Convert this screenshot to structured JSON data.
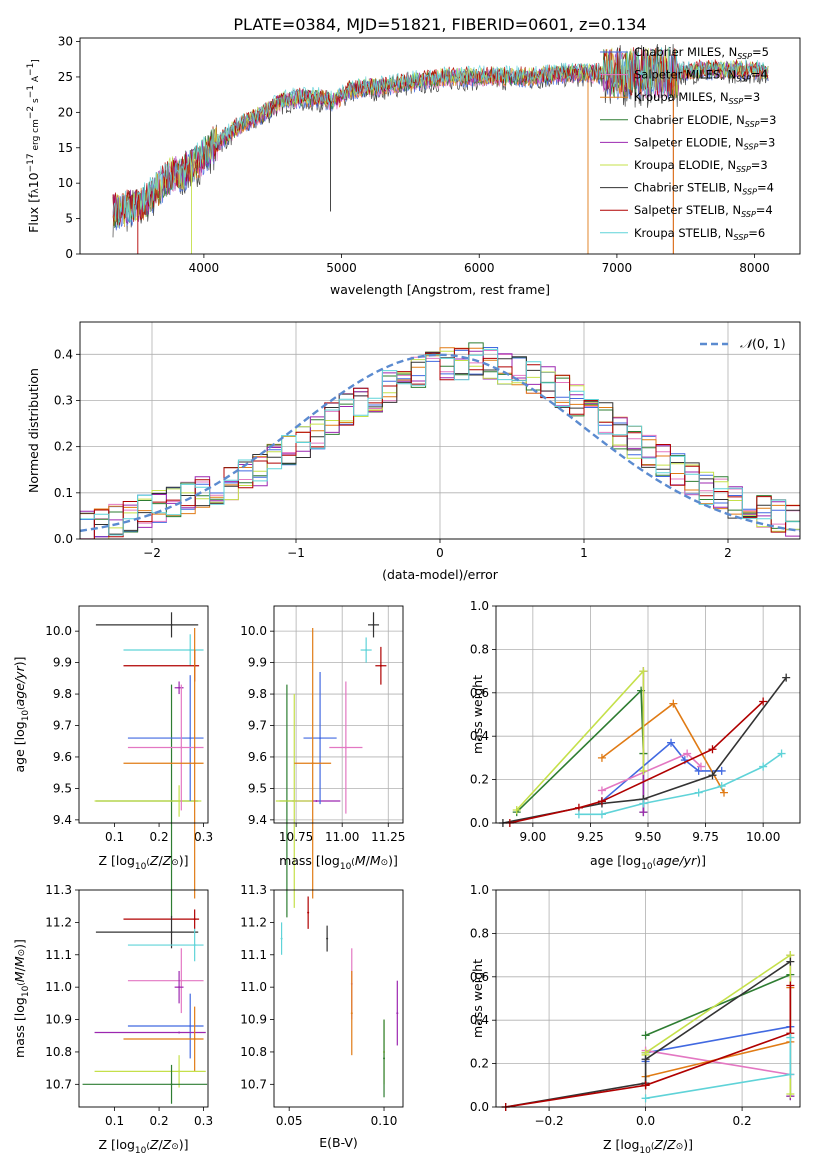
{
  "title": "PLATE=0384, MJD=51821, FIBERID=0601, z=0.134",
  "colors": {
    "chabrier_miles": "#4169e1",
    "salpeter_miles": "#e377c2",
    "kroupa_miles": "#e07b15",
    "chabrier_elodie": "#2e7d32",
    "salpeter_elodie": "#9c27b0",
    "kroupa_elodie": "#c5e04a",
    "chabrier_stelib": "#333333",
    "salpeter_stelib": "#b00000",
    "kroupa_stelib": "#5fd3d8",
    "gaussian": "#5b8bd0"
  },
  "chart_data": [
    {
      "id": "spectrum",
      "type": "line",
      "xlabel": "wavelength [Angstrom, rest frame]",
      "ylabel": "Flux [f_λ 10^-17 erg cm^-2 s^-1 A^-1]",
      "xlim": [
        3100,
        8330
      ],
      "ylim": [
        0,
        30.5
      ],
      "xticks": [
        4000,
        5000,
        6000,
        7000,
        8000
      ],
      "yticks": [
        0,
        5,
        10,
        15,
        20,
        25,
        30
      ],
      "grid": false,
      "legend_position": "right",
      "continuum": {
        "x": [
          3340,
          3450,
          3550,
          3650,
          3750,
          3850,
          3950,
          4050,
          4150,
          4250,
          4350,
          4450,
          4550,
          4650,
          4750,
          4850,
          4950,
          5050,
          5150,
          5250,
          5400,
          5600,
          5800,
          6000,
          6200,
          6400,
          6600,
          6800,
          7000,
          7200,
          7400,
          7600,
          7800,
          8000,
          8100
        ],
        "y": [
          6.0,
          6.5,
          7.0,
          9.0,
          11.0,
          11.5,
          13.0,
          15.0,
          16.5,
          18.0,
          19.0,
          20.0,
          21.5,
          22.0,
          22.0,
          22.0,
          21.5,
          23.0,
          23.5,
          23.5,
          24.0,
          24.5,
          25.0,
          25.0,
          25.0,
          25.0,
          25.5,
          25.5,
          25.5,
          25.5,
          25.5,
          26.0,
          26.0,
          26.0,
          25.5
        ]
      },
      "series": [
        {
          "name": "Chabrier MILES, N_SSP=5",
          "color_key": "chabrier_miles"
        },
        {
          "name": "Salpeter MILES, N_SSP=4",
          "color_key": "salpeter_miles"
        },
        {
          "name": "Kroupa MILES, N_SSP=3",
          "color_key": "kroupa_miles"
        },
        {
          "name": "Chabrier ELODIE, N_SSP=3",
          "color_key": "chabrier_elodie"
        },
        {
          "name": "Salpeter ELODIE, N_SSP=3",
          "color_key": "salpeter_elodie"
        },
        {
          "name": "Kroupa ELODIE, N_SSP=3",
          "color_key": "kroupa_elodie"
        },
        {
          "name": "Chabrier STELIB, N_SSP=4",
          "color_key": "chabrier_stelib"
        },
        {
          "name": "Salpeter STELIB, N_SSP=4",
          "color_key": "salpeter_stelib"
        },
        {
          "name": "Kroupa STELIB, N_SSP=6",
          "color_key": "kroupa_stelib"
        }
      ]
    },
    {
      "id": "residuals",
      "type": "histogram",
      "xlabel": "(data-model)/error",
      "ylabel": "Normed distribution",
      "xlim": [
        -2.5,
        2.5
      ],
      "ylim": [
        0,
        0.47
      ],
      "xticks": [
        -2,
        -1,
        0,
        1,
        2
      ],
      "yticks": [
        0.0,
        0.1,
        0.2,
        0.3,
        0.4
      ],
      "grid": true,
      "legend_position": "top-right",
      "legend_label": "N(0,1)",
      "bin_edges_range": [
        -2.6,
        2.6
      ],
      "bin_count": 52,
      "base_values": [
        0.02,
        0.025,
        0.03,
        0.04,
        0.05,
        0.06,
        0.07,
        0.08,
        0.09,
        0.1,
        0.11,
        0.12,
        0.14,
        0.15,
        0.17,
        0.19,
        0.21,
        0.23,
        0.26,
        0.28,
        0.3,
        0.31,
        0.33,
        0.35,
        0.36,
        0.37,
        0.38,
        0.38,
        0.39,
        0.38,
        0.37,
        0.36,
        0.35,
        0.34,
        0.32,
        0.3,
        0.28,
        0.26,
        0.23,
        0.21,
        0.19,
        0.17,
        0.15,
        0.13,
        0.11,
        0.1,
        0.08,
        0.07,
        0.06,
        0.05,
        0.04,
        0.03
      ]
    },
    {
      "id": "age-vs-z",
      "type": "errorbar",
      "xlabel": "Z [log10(Z/Z⊙)]",
      "ylabel": "age  [log10(age/yr)]",
      "xlim": [
        0.02,
        0.31
      ],
      "ylim": [
        9.39,
        10.08
      ],
      "xticks": [
        0.1,
        0.2,
        0.3
      ],
      "yticks": [
        9.4,
        9.5,
        9.6,
        9.7,
        9.8,
        9.9,
        10.0
      ],
      "grid": false,
      "points": [
        {
          "color_key": "chabrier_stelib",
          "x": 0.228,
          "xerr": [
            0.17,
            0.06
          ],
          "y": 10.02,
          "yerr": 0.04
        },
        {
          "color_key": "kroupa_stelib",
          "x": 0.27,
          "xerr": [
            0.15,
            0.03
          ],
          "y": 9.94,
          "yerr": 0.05
        },
        {
          "color_key": "salpeter_stelib",
          "x": 0.28,
          "xerr": [
            0.16,
            0.01
          ],
          "y": 9.89,
          "yerr": 0.05
        },
        {
          "color_key": "chabrier_elodie",
          "x": 0.228,
          "xerr": [
            0.17,
            0.06
          ],
          "y": 9.46,
          "yerr": 0.37
        },
        {
          "color_key": "salpeter_elodie",
          "x": 0.245,
          "xerr": [
            0.01,
            0.01
          ],
          "y": 9.82,
          "yerr": 0.02
        },
        {
          "color_key": "kroupa_elodie",
          "x": 0.245,
          "xerr": [
            0.19,
            0.05
          ],
          "y": 9.46,
          "yerr": 0.05
        },
        {
          "color_key": "chabrier_miles",
          "x": 0.27,
          "xerr": [
            0.14,
            0.03
          ],
          "y": 9.66,
          "yerr": 0.2
        },
        {
          "color_key": "salpeter_miles",
          "x": 0.25,
          "xerr": [
            0.12,
            0.05
          ],
          "y": 9.63,
          "yerr": 0.2
        },
        {
          "color_key": "kroupa_miles",
          "x": 0.28,
          "xerr": [
            0.16,
            0.02
          ],
          "y": 9.58,
          "yerr": 0.43
        }
      ]
    },
    {
      "id": "age-vs-mass",
      "type": "errorbar",
      "xlabel": "mass [log10(M/M⊙)]",
      "xlim": [
        10.63,
        11.33
      ],
      "ylim": [
        9.39,
        10.08
      ],
      "xticks": [
        10.75,
        11.0,
        11.25
      ],
      "yticks": [
        9.4,
        9.5,
        9.6,
        9.7,
        9.8,
        9.9,
        10.0
      ],
      "grid": true,
      "points": [
        {
          "color_key": "chabrier_stelib",
          "x": 11.17,
          "xerr": [
            0.03,
            0.03
          ],
          "y": 10.02,
          "yerr": 0.04
        },
        {
          "color_key": "kroupa_stelib",
          "x": 11.13,
          "xerr": [
            0.03,
            0.03
          ],
          "y": 9.94,
          "yerr": 0.04
        },
        {
          "color_key": "salpeter_stelib",
          "x": 11.21,
          "xerr": [
            0.03,
            0.03
          ],
          "y": 9.89,
          "yerr": 0.06
        },
        {
          "color_key": "chabrier_elodie",
          "x": 10.7,
          "xerr": [
            0.04,
            0.04
          ],
          "y": 9.46,
          "yerr": 0.37
        },
        {
          "color_key": "salpeter_elodie",
          "x": 10.86,
          "xerr": [
            0.13,
            0.13
          ],
          "y": 9.46,
          "yerr": 0.0
        },
        {
          "color_key": "kroupa_elodie",
          "x": 10.74,
          "xerr": [
            0.1,
            0.1
          ],
          "y": 9.46,
          "yerr": 0.34
        },
        {
          "color_key": "chabrier_miles",
          "x": 10.88,
          "xerr": [
            0.09,
            0.09
          ],
          "y": 9.66,
          "yerr": 0.21
        },
        {
          "color_key": "salpeter_miles",
          "x": 11.02,
          "xerr": [
            0.09,
            0.09
          ],
          "y": 9.63,
          "yerr": 0.21
        },
        {
          "color_key": "kroupa_miles",
          "x": 10.84,
          "xerr": [
            0.1,
            0.1
          ],
          "y": 9.58,
          "yerr": 0.43
        }
      ]
    },
    {
      "id": "weight-vs-age",
      "type": "line",
      "xlabel": "age  [log10(age/yr)]",
      "ylabel": "mass weight",
      "xlim": [
        8.84,
        10.16
      ],
      "ylim": [
        0,
        1.0
      ],
      "xticks": [
        9.0,
        9.25,
        9.5,
        9.75,
        10.0
      ],
      "yticks": [
        0.0,
        0.2,
        0.4,
        0.6,
        0.8,
        1.0
      ],
      "grid": true,
      "series": [
        {
          "color_key": "chabrier_miles",
          "x": [
            9.3,
            9.6,
            9.66,
            9.72,
            9.82
          ],
          "y": [
            0.1,
            0.37,
            0.29,
            0.24,
            0.24
          ]
        },
        {
          "color_key": "salpeter_miles",
          "x": [
            9.3,
            9.67,
            9.73
          ],
          "y": [
            0.15,
            0.32,
            0.26
          ]
        },
        {
          "color_key": "kroupa_miles",
          "x": [
            9.3,
            9.61,
            9.83
          ],
          "y": [
            0.3,
            0.55,
            0.14
          ]
        },
        {
          "color_key": "chabrier_elodie",
          "x": [
            8.93,
            9.47,
            9.48,
            9.48
          ],
          "y": [
            0.05,
            0.61,
            0.32,
            0.05
          ]
        },
        {
          "color_key": "salpeter_elodie",
          "x": [
            9.48,
            9.48
          ],
          "y": [
            0.7,
            0.05
          ]
        },
        {
          "color_key": "kroupa_elodie",
          "x": [
            8.93,
            9.48,
            9.48
          ],
          "y": [
            0.06,
            0.7,
            0.24
          ]
        },
        {
          "color_key": "chabrier_stelib",
          "x": [
            8.87,
            9.3,
            9.48,
            9.78,
            10.1
          ],
          "y": [
            0.0,
            0.09,
            0.11,
            0.22,
            0.67
          ]
        },
        {
          "color_key": "salpeter_stelib",
          "x": [
            8.9,
            9.2,
            9.3,
            9.78,
            10.0
          ],
          "y": [
            0.0,
            0.07,
            0.1,
            0.34,
            0.56
          ]
        },
        {
          "color_key": "kroupa_stelib",
          "x": [
            9.2,
            9.3,
            9.48,
            9.72,
            9.82,
            10.0,
            10.08
          ],
          "y": [
            0.04,
            0.04,
            0.09,
            0.14,
            0.17,
            0.26,
            0.32
          ]
        }
      ]
    },
    {
      "id": "mass-vs-z",
      "type": "errorbar",
      "xlabel": "Z [log10(Z/Z⊙)]",
      "ylabel": "mass [log10(M/M⊙)]",
      "xlim": [
        0.02,
        0.31
      ],
      "ylim": [
        10.63,
        11.3
      ],
      "xticks": [
        0.1,
        0.2,
        0.3
      ],
      "yticks": [
        10.7,
        10.8,
        10.9,
        11.0,
        11.1,
        11.2,
        11.3
      ],
      "grid": false,
      "points": [
        {
          "color_key": "salpeter_stelib",
          "x": 0.28,
          "xerr": [
            0.16,
            0.01
          ],
          "y": 11.21,
          "yerr": 0.03
        },
        {
          "color_key": "chabrier_stelib",
          "x": 0.228,
          "xerr": [
            0.17,
            0.06
          ],
          "y": 11.17,
          "yerr": 0.05
        },
        {
          "color_key": "kroupa_stelib",
          "x": 0.28,
          "xerr": [
            0.15,
            0.02
          ],
          "y": 11.13,
          "yerr": 0.05
        },
        {
          "color_key": "salpeter_miles",
          "x": 0.25,
          "xerr": [
            0.12,
            0.05
          ],
          "y": 11.02,
          "yerr": 0.1
        },
        {
          "color_key": "salpeter_elodie",
          "x": 0.245,
          "xerr": [
            0.01,
            0.01
          ],
          "y": 11.0,
          "yerr": 0.05
        },
        {
          "color_key": "chabrier_miles",
          "x": 0.27,
          "xerr": [
            0.14,
            0.03
          ],
          "y": 10.88,
          "yerr": 0.1
        },
        {
          "color_key": "salpeter_elodie",
          "x": 0.245,
          "xerr": [
            0.19,
            0.06
          ],
          "y": 10.86,
          "yerr": 0.0
        },
        {
          "color_key": "kroupa_miles",
          "x": 0.28,
          "xerr": [
            0.16,
            0.02
          ],
          "y": 10.84,
          "yerr": 0.1
        },
        {
          "color_key": "kroupa_elodie",
          "x": 0.245,
          "xerr": [
            0.19,
            0.06
          ],
          "y": 10.74,
          "yerr": 0.05
        },
        {
          "color_key": "chabrier_elodie",
          "x": 0.228,
          "xerr": [
            0.2,
            0.08
          ],
          "y": 10.7,
          "yerr": 0.06
        }
      ]
    },
    {
      "id": "mass-vs-ebv",
      "type": "errorbar",
      "xlabel": "E(B-V)",
      "xlim": [
        0.042,
        0.11
      ],
      "ylim": [
        10.63,
        11.3
      ],
      "xticks": [
        0.05,
        0.1
      ],
      "yticks": [
        10.7,
        10.8,
        10.9,
        11.0,
        11.1,
        11.2,
        11.3
      ],
      "grid": false,
      "points": [
        {
          "color_key": "kroupa_stelib",
          "x": 0.046,
          "xerr": [
            0,
            0
          ],
          "y": 11.15,
          "yerr": 0.05
        },
        {
          "color_key": "salpeter_stelib",
          "x": 0.06,
          "xerr": [
            0,
            0
          ],
          "y": 11.23,
          "yerr": 0.05
        },
        {
          "color_key": "chabrier_stelib",
          "x": 0.07,
          "xerr": [
            0,
            0
          ],
          "y": 11.15,
          "yerr": 0.04
        },
        {
          "color_key": "salpeter_miles",
          "x": 0.083,
          "xerr": [
            0,
            0
          ],
          "y": 11.01,
          "yerr": 0.11
        },
        {
          "color_key": "kroupa_miles",
          "x": 0.083,
          "xerr": [
            0,
            0
          ],
          "y": 10.92,
          "yerr": 0.13
        },
        {
          "color_key": "kroupa_elodie",
          "x": 0.1,
          "xerr": [
            0,
            0
          ],
          "y": 10.8,
          "yerr": 0.1
        },
        {
          "color_key": "chabrier_elodie",
          "x": 0.1,
          "xerr": [
            0,
            0
          ],
          "y": 10.78,
          "yerr": 0.12
        },
        {
          "color_key": "salpeter_elodie",
          "x": 0.107,
          "xerr": [
            0,
            0
          ],
          "y": 10.92,
          "yerr": 0.1
        }
      ]
    },
    {
      "id": "weight-vs-z",
      "type": "line",
      "xlabel": "Z [log10(Z/Z⊙)]",
      "ylabel": "mass weight",
      "xlim": [
        -0.31,
        0.32
      ],
      "ylim": [
        0,
        1.0
      ],
      "xticks": [
        -0.2,
        0.0,
        0.2
      ],
      "yticks": [
        0.0,
        0.2,
        0.4,
        0.6,
        0.8,
        1.0
      ],
      "grid": true,
      "series": [
        {
          "color_key": "chabrier_miles",
          "x": [
            0.0,
            0.0,
            0.3
          ],
          "y": [
            0.21,
            0.25,
            0.37
          ]
        },
        {
          "color_key": "salpeter_miles",
          "x": [
            0.0,
            0.3
          ],
          "y": [
            0.26,
            0.15
          ]
        },
        {
          "color_key": "kroupa_miles",
          "x": [
            0.0,
            0.3,
            0.3
          ],
          "y": [
            0.14,
            0.3,
            0.55
          ]
        },
        {
          "color_key": "chabrier_elodie",
          "x": [
            0.0,
            0.3,
            0.3
          ],
          "y": [
            0.33,
            0.61,
            0.05
          ]
        },
        {
          "color_key": "salpeter_elodie",
          "x": [
            0.3,
            0.3
          ],
          "y": [
            0.7,
            0.05
          ]
        },
        {
          "color_key": "kroupa_elodie",
          "x": [
            0.0,
            0.0,
            0.3,
            0.3
          ],
          "y": [
            0.24,
            0.25,
            0.7,
            0.06
          ]
        },
        {
          "color_key": "chabrier_stelib",
          "x": [
            -0.29,
            0.0,
            0.0,
            0.3
          ],
          "y": [
            0.0,
            0.11,
            0.22,
            0.67
          ]
        },
        {
          "color_key": "salpeter_stelib",
          "x": [
            -0.29,
            0.0,
            0.0,
            0.3,
            0.3
          ],
          "y": [
            0.0,
            0.1,
            0.1,
            0.34,
            0.56
          ]
        },
        {
          "color_key": "kroupa_stelib",
          "x": [
            0.0,
            0.3,
            0.3
          ],
          "y": [
            0.04,
            0.15,
            0.32
          ]
        }
      ]
    }
  ]
}
